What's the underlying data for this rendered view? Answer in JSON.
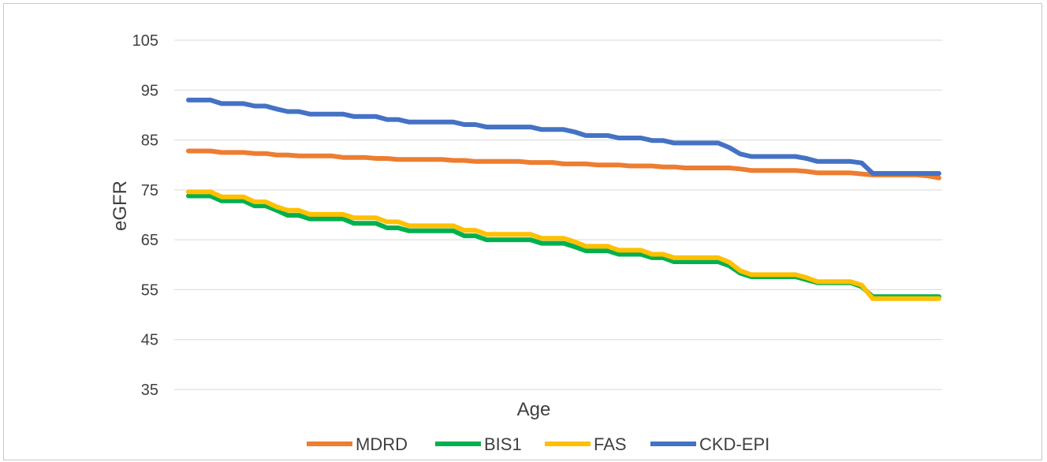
{
  "chart_data": {
    "type": "line",
    "title": "",
    "xlabel": "Age",
    "ylabel": "eGFR",
    "ylim": [
      35,
      105
    ],
    "yticks": [
      35,
      45,
      55,
      65,
      75,
      85,
      95,
      105
    ],
    "grid": true,
    "legend": "bottom",
    "x": [
      1,
      2,
      3,
      4,
      5,
      6,
      7,
      8,
      9,
      10,
      11,
      12,
      13,
      14,
      15,
      16,
      17,
      18,
      19,
      20,
      21,
      22,
      23,
      24,
      25,
      26,
      27,
      28,
      29,
      30,
      31,
      32,
      33,
      34,
      35,
      36,
      37,
      38,
      39,
      40,
      41,
      42,
      43,
      44,
      45,
      46,
      47,
      48,
      49,
      50,
      51,
      52,
      53,
      54,
      55,
      56,
      57,
      58,
      59,
      60,
      61,
      62,
      63,
      64,
      65,
      66,
      67,
      68,
      69
    ],
    "series": [
      {
        "name": "MDRD",
        "color": "#ED7D31",
        "values": [
          82.8,
          82.8,
          82.8,
          82.5,
          82.5,
          82.5,
          82.3,
          82.3,
          82.0,
          82.0,
          81.8,
          81.8,
          81.8,
          81.8,
          81.5,
          81.5,
          81.5,
          81.3,
          81.3,
          81.1,
          81.1,
          81.1,
          81.1,
          81.1,
          80.9,
          80.9,
          80.7,
          80.7,
          80.7,
          80.7,
          80.7,
          80.5,
          80.5,
          80.5,
          80.2,
          80.2,
          80.2,
          80.0,
          80.0,
          80.0,
          79.8,
          79.8,
          79.8,
          79.6,
          79.6,
          79.4,
          79.4,
          79.4,
          79.4,
          79.4,
          79.2,
          78.9,
          78.9,
          78.9,
          78.9,
          78.9,
          78.7,
          78.4,
          78.4,
          78.4,
          78.4,
          78.2,
          78.0,
          78.0,
          78.0,
          78.0,
          78.0,
          77.8,
          77.4
        ]
      },
      {
        "name": "BIS1",
        "color": "#00B050",
        "values": [
          73.8,
          73.8,
          73.8,
          72.8,
          72.8,
          72.8,
          71.8,
          71.8,
          70.9,
          69.9,
          69.9,
          69.2,
          69.2,
          69.2,
          69.2,
          68.3,
          68.3,
          68.3,
          67.4,
          67.4,
          66.8,
          66.8,
          66.8,
          66.8,
          66.8,
          65.8,
          65.8,
          65.0,
          65.0,
          65.0,
          65.0,
          65.0,
          64.3,
          64.3,
          64.3,
          63.6,
          62.8,
          62.8,
          62.8,
          62.1,
          62.1,
          62.1,
          61.4,
          61.4,
          60.6,
          60.6,
          60.6,
          60.6,
          60.6,
          59.8,
          58.3,
          57.6,
          57.6,
          57.6,
          57.6,
          57.6,
          57.0,
          56.4,
          56.4,
          56.4,
          56.4,
          55.6,
          53.6,
          53.6,
          53.6,
          53.6,
          53.6,
          53.6,
          53.6
        ]
      },
      {
        "name": "FAS",
        "color": "#FFC000",
        "values": [
          74.6,
          74.6,
          74.6,
          73.6,
          73.6,
          73.6,
          72.6,
          72.6,
          71.6,
          70.9,
          70.9,
          70.1,
          70.1,
          70.1,
          70.1,
          69.4,
          69.4,
          69.4,
          68.6,
          68.6,
          67.8,
          67.8,
          67.8,
          67.8,
          67.8,
          66.9,
          66.9,
          66.1,
          66.1,
          66.1,
          66.1,
          66.1,
          65.3,
          65.3,
          65.3,
          64.6,
          63.7,
          63.7,
          63.7,
          62.9,
          62.9,
          62.9,
          62.1,
          62.1,
          61.4,
          61.4,
          61.4,
          61.4,
          61.4,
          60.5,
          58.8,
          58.0,
          58.0,
          58.0,
          58.0,
          58.0,
          57.4,
          56.6,
          56.6,
          56.6,
          56.6,
          55.9,
          53.2,
          53.2,
          53.2,
          53.2,
          53.2,
          53.2,
          53.2
        ]
      },
      {
        "name": "CKD-EPI",
        "color": "#4472C4",
        "values": [
          93.0,
          93.0,
          93.0,
          92.3,
          92.3,
          92.3,
          91.8,
          91.8,
          91.2,
          90.7,
          90.7,
          90.2,
          90.2,
          90.2,
          90.2,
          89.7,
          89.7,
          89.7,
          89.1,
          89.1,
          88.6,
          88.6,
          88.6,
          88.6,
          88.6,
          88.1,
          88.1,
          87.6,
          87.6,
          87.6,
          87.6,
          87.6,
          87.1,
          87.1,
          87.1,
          86.6,
          85.9,
          85.9,
          85.9,
          85.4,
          85.4,
          85.4,
          84.9,
          84.9,
          84.4,
          84.4,
          84.4,
          84.4,
          84.4,
          83.5,
          82.2,
          81.7,
          81.7,
          81.7,
          81.7,
          81.7,
          81.3,
          80.7,
          80.7,
          80.7,
          80.7,
          80.4,
          78.3,
          78.3,
          78.3,
          78.3,
          78.3,
          78.3,
          78.3
        ]
      }
    ]
  }
}
